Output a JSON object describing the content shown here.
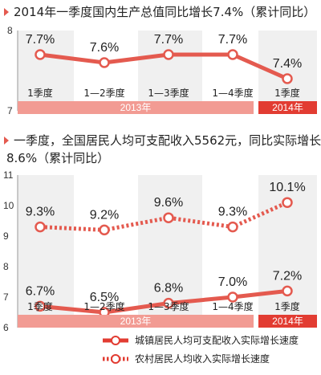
{
  "accent_color": "#e45a4f",
  "band_colors": [
    "#f0f0f0",
    "#ffffff"
  ],
  "year_bar_light": "#f29b93",
  "year_bar_dark": "#e23c32",
  "chart_data": [
    {
      "type": "line",
      "title": "2014年一季度国内生产总值同比增长7.4%（累计同比）",
      "categories": [
        "1季度",
        "1—2季度",
        "1—3季度",
        "1—4季度",
        "1季度"
      ],
      "year_groups": [
        {
          "label": "2013年",
          "span": [
            0,
            3
          ]
        },
        {
          "label": "2014年",
          "span": [
            4,
            4
          ]
        }
      ],
      "yticks": [
        "8",
        "7"
      ],
      "ylim": [
        7,
        8
      ],
      "series": [
        {
          "values": [
            7.7,
            7.6,
            7.7,
            7.7,
            7.4
          ],
          "labels": [
            "7.7%",
            "7.6%",
            "7.7%",
            "7.7%",
            "7.4%"
          ],
          "style": "solid"
        }
      ]
    },
    {
      "type": "line",
      "title_line1": "一季度，全国居民人均可支配收入5562元，同比实际增长",
      "title_line2": "8.6%（累计同比）",
      "categories": [
        "1季度",
        "1—2季度",
        "1—3季度",
        "1—4季度",
        "1季度"
      ],
      "year_groups": [
        {
          "label": "2013年",
          "span": [
            0,
            3
          ]
        },
        {
          "label": "2014年",
          "span": [
            4,
            4
          ]
        }
      ],
      "yticks": [
        "11",
        "10",
        "9",
        "8",
        "7",
        "6"
      ],
      "ylim": [
        6,
        11
      ],
      "series": [
        {
          "name": "城镇居民人均可支配收入实际增长速度",
          "values": [
            6.7,
            6.5,
            6.8,
            7.0,
            7.2
          ],
          "labels": [
            "6.7%",
            "6.5%",
            "6.8%",
            "7.0%",
            "7.2%"
          ],
          "style": "solid"
        },
        {
          "name": "农村居民人均收入实际增长速度",
          "values": [
            9.3,
            9.2,
            9.6,
            9.3,
            10.1
          ],
          "labels": [
            "9.3%",
            "9.2%",
            "9.6%",
            "9.3%",
            "10.1%"
          ],
          "style": "dotted"
        }
      ]
    }
  ]
}
